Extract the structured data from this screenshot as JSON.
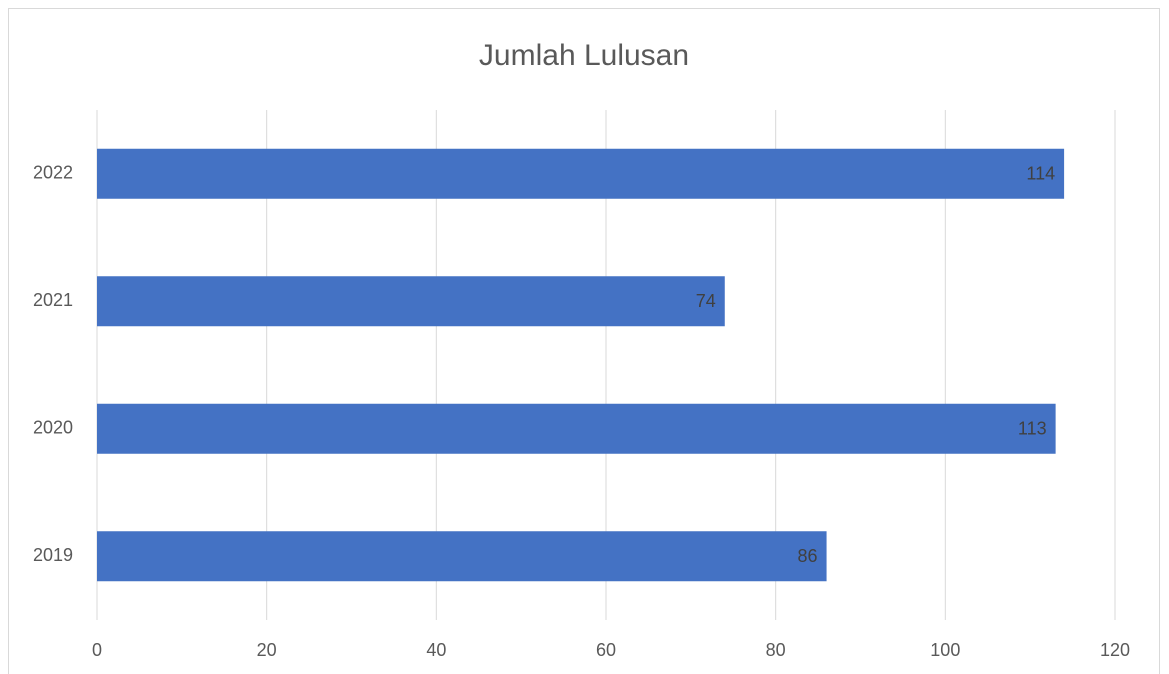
{
  "chart_data": {
    "type": "bar",
    "orientation": "horizontal",
    "title": "Jumlah Lulusan",
    "categories": [
      "2019",
      "2020",
      "2021",
      "2022"
    ],
    "values": [
      86,
      113,
      74,
      114
    ],
    "color": "#4472c4",
    "xlim": [
      0,
      120
    ],
    "xticks": [
      0,
      20,
      40,
      60,
      80,
      100,
      120
    ],
    "grid": true,
    "data_labels": true
  }
}
